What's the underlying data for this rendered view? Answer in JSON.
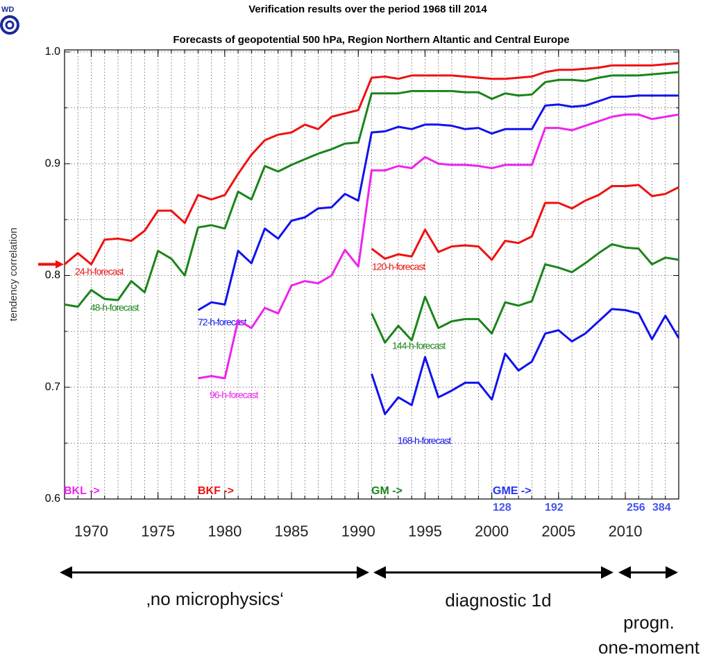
{
  "chart_data": {
    "type": "line",
    "title": "Verification results over the period 1968 till 2014",
    "subtitle": "Forecasts of geopotential 500 hPa, Region Northern Altantic and Central Europe",
    "logo": "WD",
    "y_label": "tendency correlation",
    "x": [
      1968,
      1969,
      1970,
      1971,
      1972,
      1973,
      1974,
      1975,
      1976,
      1977,
      1978,
      1979,
      1980,
      1981,
      1982,
      1983,
      1984,
      1985,
      1986,
      1987,
      1988,
      1989,
      1990,
      1991,
      1992,
      1993,
      1994,
      1995,
      1996,
      1997,
      1998,
      1999,
      2000,
      2001,
      2002,
      2003,
      2004,
      2005,
      2006,
      2007,
      2008,
      2009,
      2010,
      2011,
      2012,
      2013,
      2014
    ],
    "xlim": [
      1968,
      2014
    ],
    "xticks": [
      1970,
      1975,
      1980,
      1985,
      1990,
      1995,
      2000,
      2005,
      2010
    ],
    "ylim": [
      0.6,
      1.0
    ],
    "yticks": [
      0.6,
      0.7,
      0.8,
      0.9,
      {
        "value": 1.0,
        "label": "1.0"
      }
    ],
    "yminor": [
      0.65,
      0.75,
      0.85,
      0.95
    ],
    "grid": true,
    "series": [
      {
        "name": "24-h-forecast",
        "color": "#ee1111",
        "values": [
          0.81,
          0.82,
          0.81,
          0.832,
          0.833,
          0.831,
          0.84,
          0.858,
          0.858,
          0.847,
          0.872,
          0.868,
          0.872,
          0.891,
          0.908,
          0.921,
          0.926,
          0.928,
          0.935,
          0.931,
          0.942,
          0.945,
          0.948,
          0.977,
          0.978,
          0.976,
          0.979,
          0.979,
          0.979,
          0.979,
          0.978,
          0.977,
          0.976,
          0.976,
          0.977,
          0.978,
          0.982,
          0.984,
          0.984,
          0.985,
          0.986,
          0.988,
          0.988,
          0.988,
          0.988,
          0.989,
          0.99
        ]
      },
      {
        "name": "48-h-forecast",
        "color": "#1a841a",
        "values": [
          0.774,
          0.772,
          0.787,
          0.779,
          0.778,
          0.795,
          0.785,
          0.822,
          0.815,
          0.8,
          0.843,
          0.845,
          0.842,
          0.875,
          0.868,
          0.898,
          0.893,
          0.899,
          0.904,
          0.909,
          0.913,
          0.918,
          0.919,
          0.963,
          0.963,
          0.963,
          0.965,
          0.965,
          0.965,
          0.965,
          0.964,
          0.964,
          0.958,
          0.963,
          0.961,
          0.962,
          0.973,
          0.975,
          0.975,
          0.974,
          0.977,
          0.979,
          0.979,
          0.979,
          0.98,
          0.981,
          0.982
        ]
      },
      {
        "name": "72-h-forecast",
        "color": "#1111ee",
        "values": [
          null,
          null,
          null,
          null,
          null,
          null,
          null,
          null,
          null,
          null,
          0.769,
          0.776,
          0.774,
          0.822,
          0.811,
          0.842,
          0.833,
          0.849,
          0.852,
          0.86,
          0.861,
          0.873,
          0.867,
          0.928,
          0.929,
          0.933,
          0.931,
          0.935,
          0.935,
          0.934,
          0.931,
          0.932,
          0.927,
          0.931,
          0.931,
          0.931,
          0.952,
          0.953,
          0.951,
          0.952,
          0.956,
          0.96,
          0.96,
          0.961,
          0.961,
          0.961,
          0.961
        ]
      },
      {
        "name": "96-h-forecast",
        "color": "#ee22ee",
        "values": [
          null,
          null,
          null,
          null,
          null,
          null,
          null,
          null,
          null,
          null,
          0.708,
          0.71,
          0.708,
          0.76,
          0.753,
          0.771,
          0.766,
          0.791,
          0.795,
          0.793,
          0.8,
          0.823,
          0.808,
          0.894,
          0.894,
          0.898,
          0.896,
          0.906,
          0.9,
          0.899,
          0.899,
          0.898,
          0.896,
          0.899,
          0.899,
          0.899,
          0.932,
          0.932,
          0.93,
          0.934,
          0.938,
          0.942,
          0.944,
          0.944,
          0.94,
          0.942,
          0.944
        ]
      },
      {
        "name": "120-h-forecast",
        "color": "#ee1111",
        "values": [
          null,
          null,
          null,
          null,
          null,
          null,
          null,
          null,
          null,
          null,
          null,
          null,
          null,
          null,
          null,
          null,
          null,
          null,
          null,
          null,
          null,
          null,
          null,
          0.824,
          0.815,
          0.819,
          0.817,
          0.841,
          0.821,
          0.826,
          0.827,
          0.826,
          0.814,
          0.831,
          0.829,
          0.835,
          0.865,
          0.865,
          0.86,
          0.867,
          0.872,
          0.88,
          0.88,
          0.881,
          0.871,
          0.873,
          0.879
        ]
      },
      {
        "name": "144-h-forecast",
        "color": "#1a841a",
        "values": [
          null,
          null,
          null,
          null,
          null,
          null,
          null,
          null,
          null,
          null,
          null,
          null,
          null,
          null,
          null,
          null,
          null,
          null,
          null,
          null,
          null,
          null,
          null,
          0.766,
          0.74,
          0.755,
          0.742,
          0.781,
          0.753,
          0.759,
          0.761,
          0.761,
          0.748,
          0.776,
          0.773,
          0.777,
          0.81,
          0.807,
          0.803,
          0.811,
          0.82,
          0.828,
          0.825,
          0.824,
          0.81,
          0.816,
          0.814
        ]
      },
      {
        "name": "168-h-forecast",
        "color": "#1111ee",
        "values": [
          null,
          null,
          null,
          null,
          null,
          null,
          null,
          null,
          null,
          null,
          null,
          null,
          null,
          null,
          null,
          null,
          null,
          null,
          null,
          null,
          null,
          null,
          null,
          0.712,
          0.676,
          0.691,
          0.684,
          0.727,
          0.691,
          0.697,
          0.704,
          0.704,
          0.689,
          0.73,
          0.715,
          0.723,
          0.748,
          0.751,
          0.741,
          0.748,
          0.759,
          0.77,
          0.769,
          0.766,
          0.743,
          0.764,
          0.744
        ]
      }
    ],
    "annotations": [
      {
        "text": "BKL ->",
        "color": "#ee22ee"
      },
      {
        "text": "BKF ->",
        "color": "#ee1111"
      },
      {
        "text": "GM ->",
        "color": "#1a841a"
      },
      {
        "text": "GME ->",
        "color": "#2233ee"
      },
      {
        "text": "128",
        "color": "#4455ee"
      },
      {
        "text": "192",
        "color": "#4455ee"
      },
      {
        "text": "256",
        "color": "#4455ee"
      },
      {
        "text": "384",
        "color": "#4455ee"
      }
    ],
    "eras": [
      {
        "lines": [
          "‚no microphysics‘"
        ]
      },
      {
        "lines": [
          "diagnostic 1d"
        ]
      },
      {
        "lines": [
          "progn.",
          "one-moment"
        ]
      }
    ]
  }
}
